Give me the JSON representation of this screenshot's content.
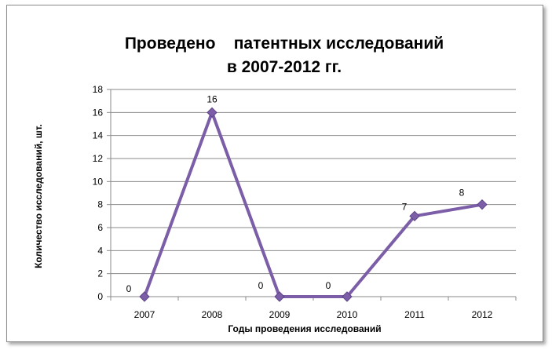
{
  "chart_data": {
    "type": "line",
    "title_line1": "Проведено    патентных исследований",
    "title_line2": "в 2007-2012 гг.",
    "xlabel": "Годы проведения исследований",
    "ylabel": "Количество исследований, шт.",
    "categories": [
      "2007",
      "2008",
      "2009",
      "2010",
      "2011",
      "2012"
    ],
    "values": [
      0,
      16,
      0,
      0,
      7,
      8
    ],
    "ylim": [
      0,
      18
    ],
    "ytick_step": 2,
    "grid": true,
    "legend": "none",
    "series_color": "#7b5ea7"
  }
}
